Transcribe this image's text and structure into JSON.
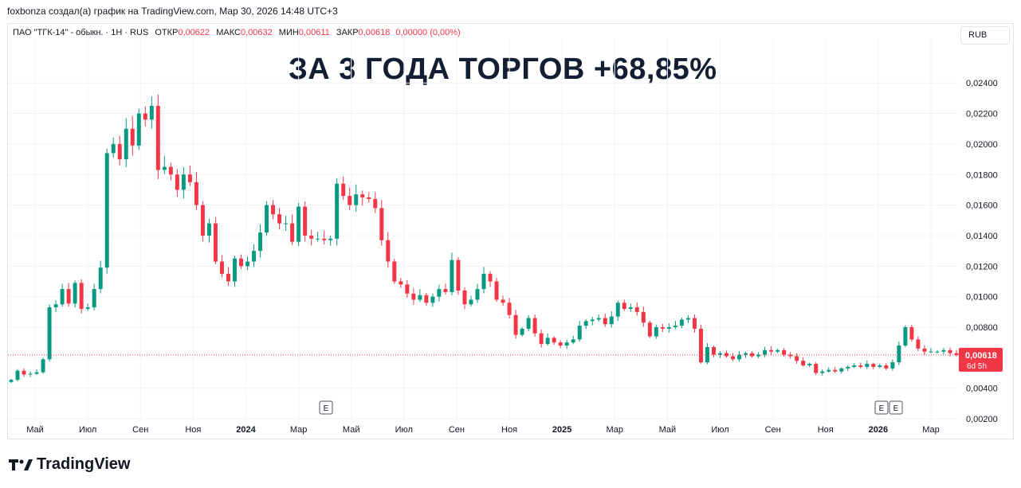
{
  "header": {
    "credit": "foxbonza создал(а) график на TradingView.com, Мар 30, 2026 14:48 UTC+3"
  },
  "legend": {
    "symbol": "ПАО \"ТГК-14\" - обыкн. · 1Н · RUS",
    "open_label": "ОТКР",
    "open_value": "0,00622",
    "high_label": "МАКС",
    "high_value": "0,00632",
    "low_label": "МИН",
    "low_value": "0,00611",
    "close_label": "ЗАКР",
    "close_value": "0,00618",
    "change": "0,00000 (0,00%)"
  },
  "currency_button": "RUB",
  "headline": "ЗА 3 ГОДА ТОРГОВ +68,85%",
  "brand": {
    "name": "TradingView"
  },
  "colors": {
    "up": "#089981",
    "down": "#f23645",
    "grid": "#f0f3fa",
    "price_line": "#f23645"
  },
  "chart_data": {
    "type": "candlestick",
    "interval": "1W",
    "y_ticks": [
      "0,02400",
      "0,02200",
      "0,02000",
      "0,01800",
      "0,01600",
      "0,01400",
      "0,01200",
      "0,01000",
      "0,00800",
      "0,00600",
      "0,00400",
      "0,00200"
    ],
    "ylim": [
      0.0019,
      0.0262
    ],
    "x_ticks": [
      "Май",
      "Июл",
      "Сен",
      "Ноя",
      "2024",
      "Мар",
      "Май",
      "Июл",
      "Сен",
      "Ноя",
      "2025",
      "Мар",
      "Май",
      "Июл",
      "Сен",
      "Ноя",
      "2026",
      "Мар"
    ],
    "bold_ticks": [
      "2024",
      "2025",
      "2026"
    ],
    "last_price_label": "0,00618",
    "countdown": "6d 5h",
    "last_price": 0.00618,
    "event_markers": [
      "E",
      "E",
      "E"
    ],
    "close_series": [
      0.00455,
      0.00515,
      0.0049,
      0.00495,
      0.00505,
      0.0059,
      0.0093,
      0.0095,
      0.0105,
      0.00955,
      0.0109,
      0.0092,
      0.0093,
      0.0105,
      0.0119,
      0.0194,
      0.02,
      0.019,
      0.021,
      0.0199,
      0.022,
      0.0216,
      0.0225,
      0.0183,
      0.0185,
      0.018,
      0.017,
      0.018,
      0.0175,
      0.016,
      0.014,
      0.0148,
      0.0123,
      0.0115,
      0.011,
      0.0125,
      0.012,
      0.0123,
      0.013,
      0.0142,
      0.016,
      0.0154,
      0.0148,
      0.0148,
      0.0136,
      0.0159,
      0.014,
      0.0138,
      0.0138,
      0.0137,
      0.0138,
      0.0174,
      0.0166,
      0.016,
      0.0167,
      0.0165,
      0.0164,
      0.0158,
      0.0137,
      0.0123,
      0.011,
      0.0108,
      0.0102,
      0.0098,
      0.0101,
      0.0096,
      0.01,
      0.0105,
      0.0103,
      0.0124,
      0.0104,
      0.0095,
      0.0098,
      0.0105,
      0.0115,
      0.011,
      0.0098,
      0.0096,
      0.0088,
      0.0075,
      0.0079,
      0.0086,
      0.0076,
      0.0069,
      0.0073,
      0.007,
      0.0068,
      0.007,
      0.0072,
      0.0081,
      0.0084,
      0.0085,
      0.0086,
      0.0082,
      0.0087,
      0.0096,
      0.0092,
      0.0093,
      0.009,
      0.0083,
      0.0074,
      0.008,
      0.0079,
      0.008,
      0.0081,
      0.0085,
      0.0086,
      0.0079,
      0.0057,
      0.0067,
      0.0062,
      0.0063,
      0.0061,
      0.0059,
      0.0062,
      0.0063,
      0.0061,
      0.0062,
      0.0065,
      0.0064,
      0.0065,
      0.0062,
      0.0061,
      0.0058,
      0.0055,
      0.0056,
      0.005,
      0.0051,
      0.0052,
      0.0051,
      0.0053,
      0.0054,
      0.0055,
      0.0054,
      0.0056,
      0.0054,
      0.0055,
      0.0053,
      0.0057,
      0.0068,
      0.008,
      0.0072,
      0.0066,
      0.0064,
      0.0064,
      0.0064,
      0.0065,
      0.0063,
      0.00618
    ]
  }
}
